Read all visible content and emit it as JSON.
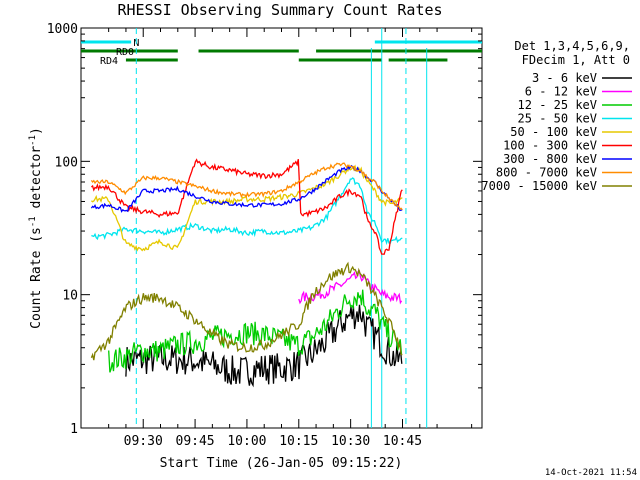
{
  "chart_data": {
    "type": "line",
    "title": "RHESSI Observing Summary Count Rates",
    "xlabel": "Start Time (26-Jan-05 09:15:22)",
    "ylabel_main": "Count Rate (s",
    "ylabel_sup1": "-1",
    "ylabel_mid": " detector",
    "ylabel_sup2": "-1",
    "ylabel_end": ")",
    "y_scale": "log",
    "ylim": [
      1,
      1000
    ],
    "xlim_minutes": [
      -3,
      113
    ],
    "x_ticks": [
      {
        "label": "09:30",
        "minute": 15
      },
      {
        "label": "09:45",
        "minute": 30
      },
      {
        "label": "10:00",
        "minute": 45
      },
      {
        "label": "10:15",
        "minute": 60
      },
      {
        "label": "10:30",
        "minute": 75
      },
      {
        "label": "10:45",
        "minute": 90
      }
    ],
    "y_ticks": [
      {
        "label": "1",
        "value": 1
      },
      {
        "label": "10",
        "value": 10
      },
      {
        "label": "100",
        "value": 100
      },
      {
        "label": "1000",
        "value": 1000
      }
    ],
    "legend_header": [
      "Det 1,3,4,5,6,9,",
      "FDecim 1, Att 0"
    ],
    "flags": [
      {
        "label": "N",
        "color": "#00e5ee",
        "level": 1,
        "segments": [
          [
            -3,
            11.5
          ],
          [
            82,
            113
          ]
        ]
      },
      {
        "label": "RD0",
        "color": "#007a00",
        "level": 2,
        "segments": [
          [
            -3,
            25
          ],
          [
            31,
            60
          ],
          [
            65,
            113
          ]
        ]
      },
      {
        "label": "RD4",
        "color": "#007a00",
        "level": 3,
        "segments": [
          [
            10,
            25
          ],
          [
            60,
            84
          ],
          [
            86,
            103
          ]
        ]
      }
    ],
    "attenuator_marks": [
      {
        "minute": 13,
        "style": "dashed"
      },
      {
        "minute": 84,
        "style": "solid"
      },
      {
        "minute": 91,
        "style": "dashed"
      }
    ],
    "saa_marks": [
      {
        "minute": 81
      },
      {
        "minute": 97
      }
    ],
    "series": [
      {
        "name": "3 - 6 keV",
        "color": "#000000",
        "points": [
          [
            10,
            3.2
          ],
          [
            20,
            3.3
          ],
          [
            30,
            3.2
          ],
          [
            38,
            2.8
          ],
          [
            42,
            2.6
          ],
          [
            48,
            2.8
          ],
          [
            55,
            2.8
          ],
          [
            60,
            3.0
          ],
          [
            64,
            3.6
          ],
          [
            68,
            4.5
          ],
          [
            72,
            6
          ],
          [
            75,
            7
          ],
          [
            78,
            7.5
          ],
          [
            80,
            5.5
          ],
          [
            82,
            5
          ],
          [
            85,
            4
          ],
          [
            88,
            3.3
          ],
          [
            90,
            3.2
          ]
        ]
      },
      {
        "name": "6 - 12 keV",
        "color": "#ff00ff",
        "points": [
          [
            60,
            9.4
          ],
          [
            65,
            9.8
          ],
          [
            70,
            11
          ],
          [
            75,
            13
          ],
          [
            78,
            14
          ],
          [
            80,
            12
          ],
          [
            82,
            11
          ],
          [
            84,
            10
          ],
          [
            87,
            9.5
          ],
          [
            90,
            9.3
          ]
        ]
      },
      {
        "name": "12 - 25 keV",
        "color": "#00cc00",
        "points": [
          [
            5,
            3.2
          ],
          [
            10,
            3.4
          ],
          [
            14,
            3.8
          ],
          [
            20,
            3.8
          ],
          [
            25,
            4.2
          ],
          [
            30,
            4.4
          ],
          [
            35,
            4.8
          ],
          [
            40,
            5
          ],
          [
            45,
            5.2
          ],
          [
            50,
            5
          ],
          [
            55,
            4.6
          ],
          [
            60,
            4.2
          ],
          [
            64,
            4.8
          ],
          [
            68,
            6
          ],
          [
            72,
            8
          ],
          [
            75,
            9.5
          ],
          [
            78,
            10
          ],
          [
            80,
            8
          ],
          [
            82,
            7.5
          ],
          [
            84,
            6
          ],
          [
            86,
            5
          ],
          [
            88,
            4.4
          ],
          [
            90,
            4.0
          ]
        ]
      },
      {
        "name": "25 - 50 keV",
        "color": "#00e5ee",
        "points": [
          [
            0,
            27
          ],
          [
            5,
            28
          ],
          [
            10,
            31
          ],
          [
            15,
            30
          ],
          [
            20,
            29
          ],
          [
            25,
            31
          ],
          [
            30,
            33
          ],
          [
            35,
            30
          ],
          [
            40,
            31
          ],
          [
            45,
            29
          ],
          [
            50,
            30
          ],
          [
            55,
            29
          ],
          [
            60,
            30
          ],
          [
            64,
            32
          ],
          [
            68,
            38
          ],
          [
            72,
            55
          ],
          [
            75,
            75
          ],
          [
            78,
            65
          ],
          [
            80,
            40
          ],
          [
            82,
            35
          ],
          [
            84,
            26
          ],
          [
            87,
            25
          ],
          [
            90,
            27
          ]
        ]
      },
      {
        "name": "50 - 100 keV",
        "color": "#e6c800",
        "points": [
          [
            0,
            52
          ],
          [
            5,
            52
          ],
          [
            10,
            24
          ],
          [
            15,
            22
          ],
          [
            20,
            25
          ],
          [
            25,
            22
          ],
          [
            30,
            50
          ],
          [
            35,
            50
          ],
          [
            40,
            50
          ],
          [
            45,
            52
          ],
          [
            50,
            52
          ],
          [
            55,
            54
          ],
          [
            60,
            57
          ],
          [
            64,
            62
          ],
          [
            68,
            68
          ],
          [
            72,
            80
          ],
          [
            75,
            90
          ],
          [
            78,
            85
          ],
          [
            80,
            70
          ],
          [
            82,
            60
          ],
          [
            84,
            50
          ],
          [
            87,
            48
          ],
          [
            90,
            52
          ]
        ]
      },
      {
        "name": "100 - 300 keV",
        "color": "#ff0000",
        "points": [
          [
            0,
            63
          ],
          [
            5,
            65
          ],
          [
            10,
            45
          ],
          [
            15,
            42
          ],
          [
            20,
            40
          ],
          [
            25,
            41
          ],
          [
            30,
            100
          ],
          [
            35,
            90
          ],
          [
            40,
            86
          ],
          [
            45,
            80
          ],
          [
            50,
            78
          ],
          [
            55,
            80
          ],
          [
            60,
            100
          ],
          [
            60.5,
            40
          ],
          [
            64,
            41
          ],
          [
            68,
            45
          ],
          [
            72,
            55
          ],
          [
            75,
            60
          ],
          [
            78,
            55
          ],
          [
            80,
            35
          ],
          [
            82,
            30
          ],
          [
            84,
            20
          ],
          [
            86,
            22
          ],
          [
            90,
            65
          ]
        ]
      },
      {
        "name": "300 - 800 keV",
        "color": "#0000ff",
        "points": [
          [
            0,
            45
          ],
          [
            5,
            47
          ],
          [
            10,
            42
          ],
          [
            15,
            60
          ],
          [
            20,
            60
          ],
          [
            25,
            62
          ],
          [
            30,
            55
          ],
          [
            35,
            50
          ],
          [
            40,
            48
          ],
          [
            45,
            47
          ],
          [
            50,
            47
          ],
          [
            55,
            48
          ],
          [
            60,
            52
          ],
          [
            64,
            60
          ],
          [
            68,
            72
          ],
          [
            72,
            85
          ],
          [
            75,
            90
          ],
          [
            78,
            85
          ],
          [
            80,
            75
          ],
          [
            82,
            70
          ],
          [
            84,
            60
          ],
          [
            87,
            50
          ],
          [
            90,
            42
          ]
        ]
      },
      {
        "name": "800 - 7000 keV",
        "color": "#ff8c00",
        "points": [
          [
            0,
            70
          ],
          [
            5,
            70
          ],
          [
            10,
            58
          ],
          [
            15,
            75
          ],
          [
            20,
            75
          ],
          [
            25,
            70
          ],
          [
            30,
            65
          ],
          [
            35,
            60
          ],
          [
            40,
            57
          ],
          [
            45,
            56
          ],
          [
            50,
            57
          ],
          [
            55,
            60
          ],
          [
            60,
            70
          ],
          [
            64,
            80
          ],
          [
            68,
            90
          ],
          [
            72,
            95
          ],
          [
            75,
            92
          ],
          [
            78,
            85
          ],
          [
            80,
            75
          ],
          [
            82,
            70
          ],
          [
            84,
            60
          ],
          [
            87,
            50
          ],
          [
            90,
            42
          ]
        ]
      },
      {
        "name": "7000 - 15000 keV",
        "color": "#808000",
        "points": [
          [
            0,
            3.4
          ],
          [
            5,
            4.5
          ],
          [
            10,
            8
          ],
          [
            15,
            9.5
          ],
          [
            20,
            9.5
          ],
          [
            25,
            8
          ],
          [
            30,
            6.5
          ],
          [
            35,
            5
          ],
          [
            40,
            4.2
          ],
          [
            45,
            4
          ],
          [
            50,
            4.2
          ],
          [
            55,
            5
          ],
          [
            60,
            6
          ],
          [
            64,
            10
          ],
          [
            68,
            13
          ],
          [
            72,
            15
          ],
          [
            75,
            16
          ],
          [
            78,
            14
          ],
          [
            80,
            12
          ],
          [
            84,
            8
          ],
          [
            88,
            5
          ],
          [
            90,
            3.6
          ]
        ]
      }
    ]
  },
  "footer_timestamp": "14-Oct-2021 11:54"
}
